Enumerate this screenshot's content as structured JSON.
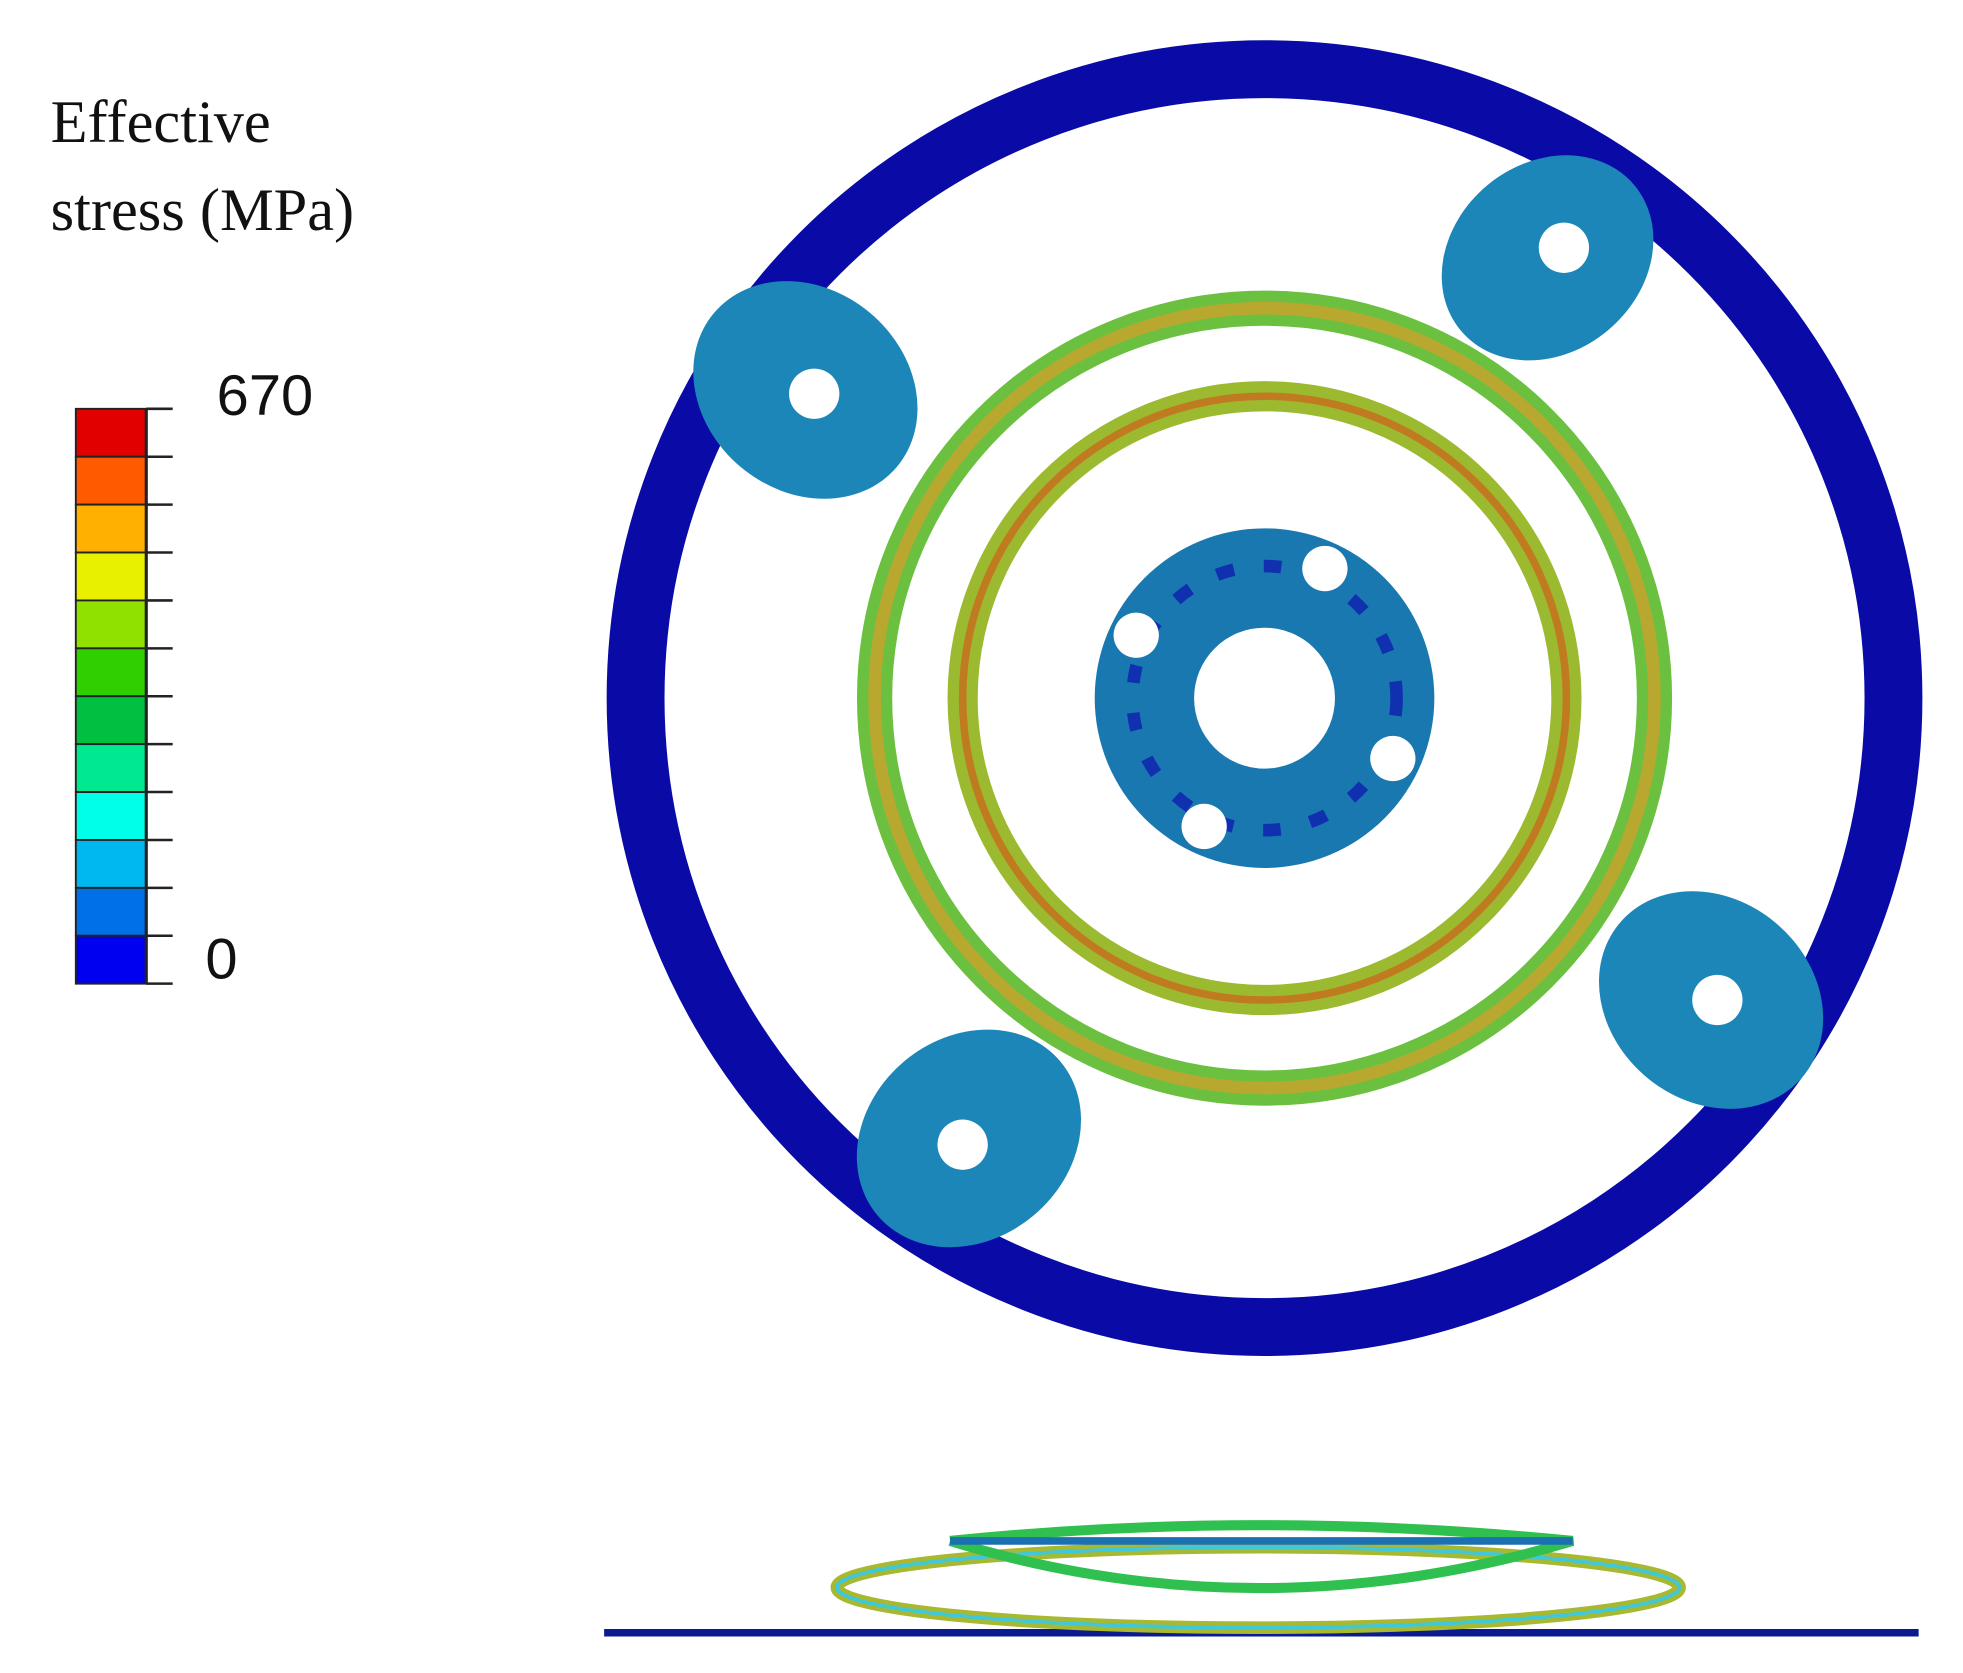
{
  "legend": {
    "title": [
      "Effective",
      "stress (MPa)"
    ],
    "max_label": "670",
    "min_label": "0",
    "colors": [
      "#e00000",
      "#ff5a00",
      "#ffb000",
      "#e8f000",
      "#90e000",
      "#30d000",
      "#00c040",
      "#00e890",
      "#00ffe8",
      "#00b8f0",
      "#0070e8",
      "#0000f0"
    ]
  }
}
